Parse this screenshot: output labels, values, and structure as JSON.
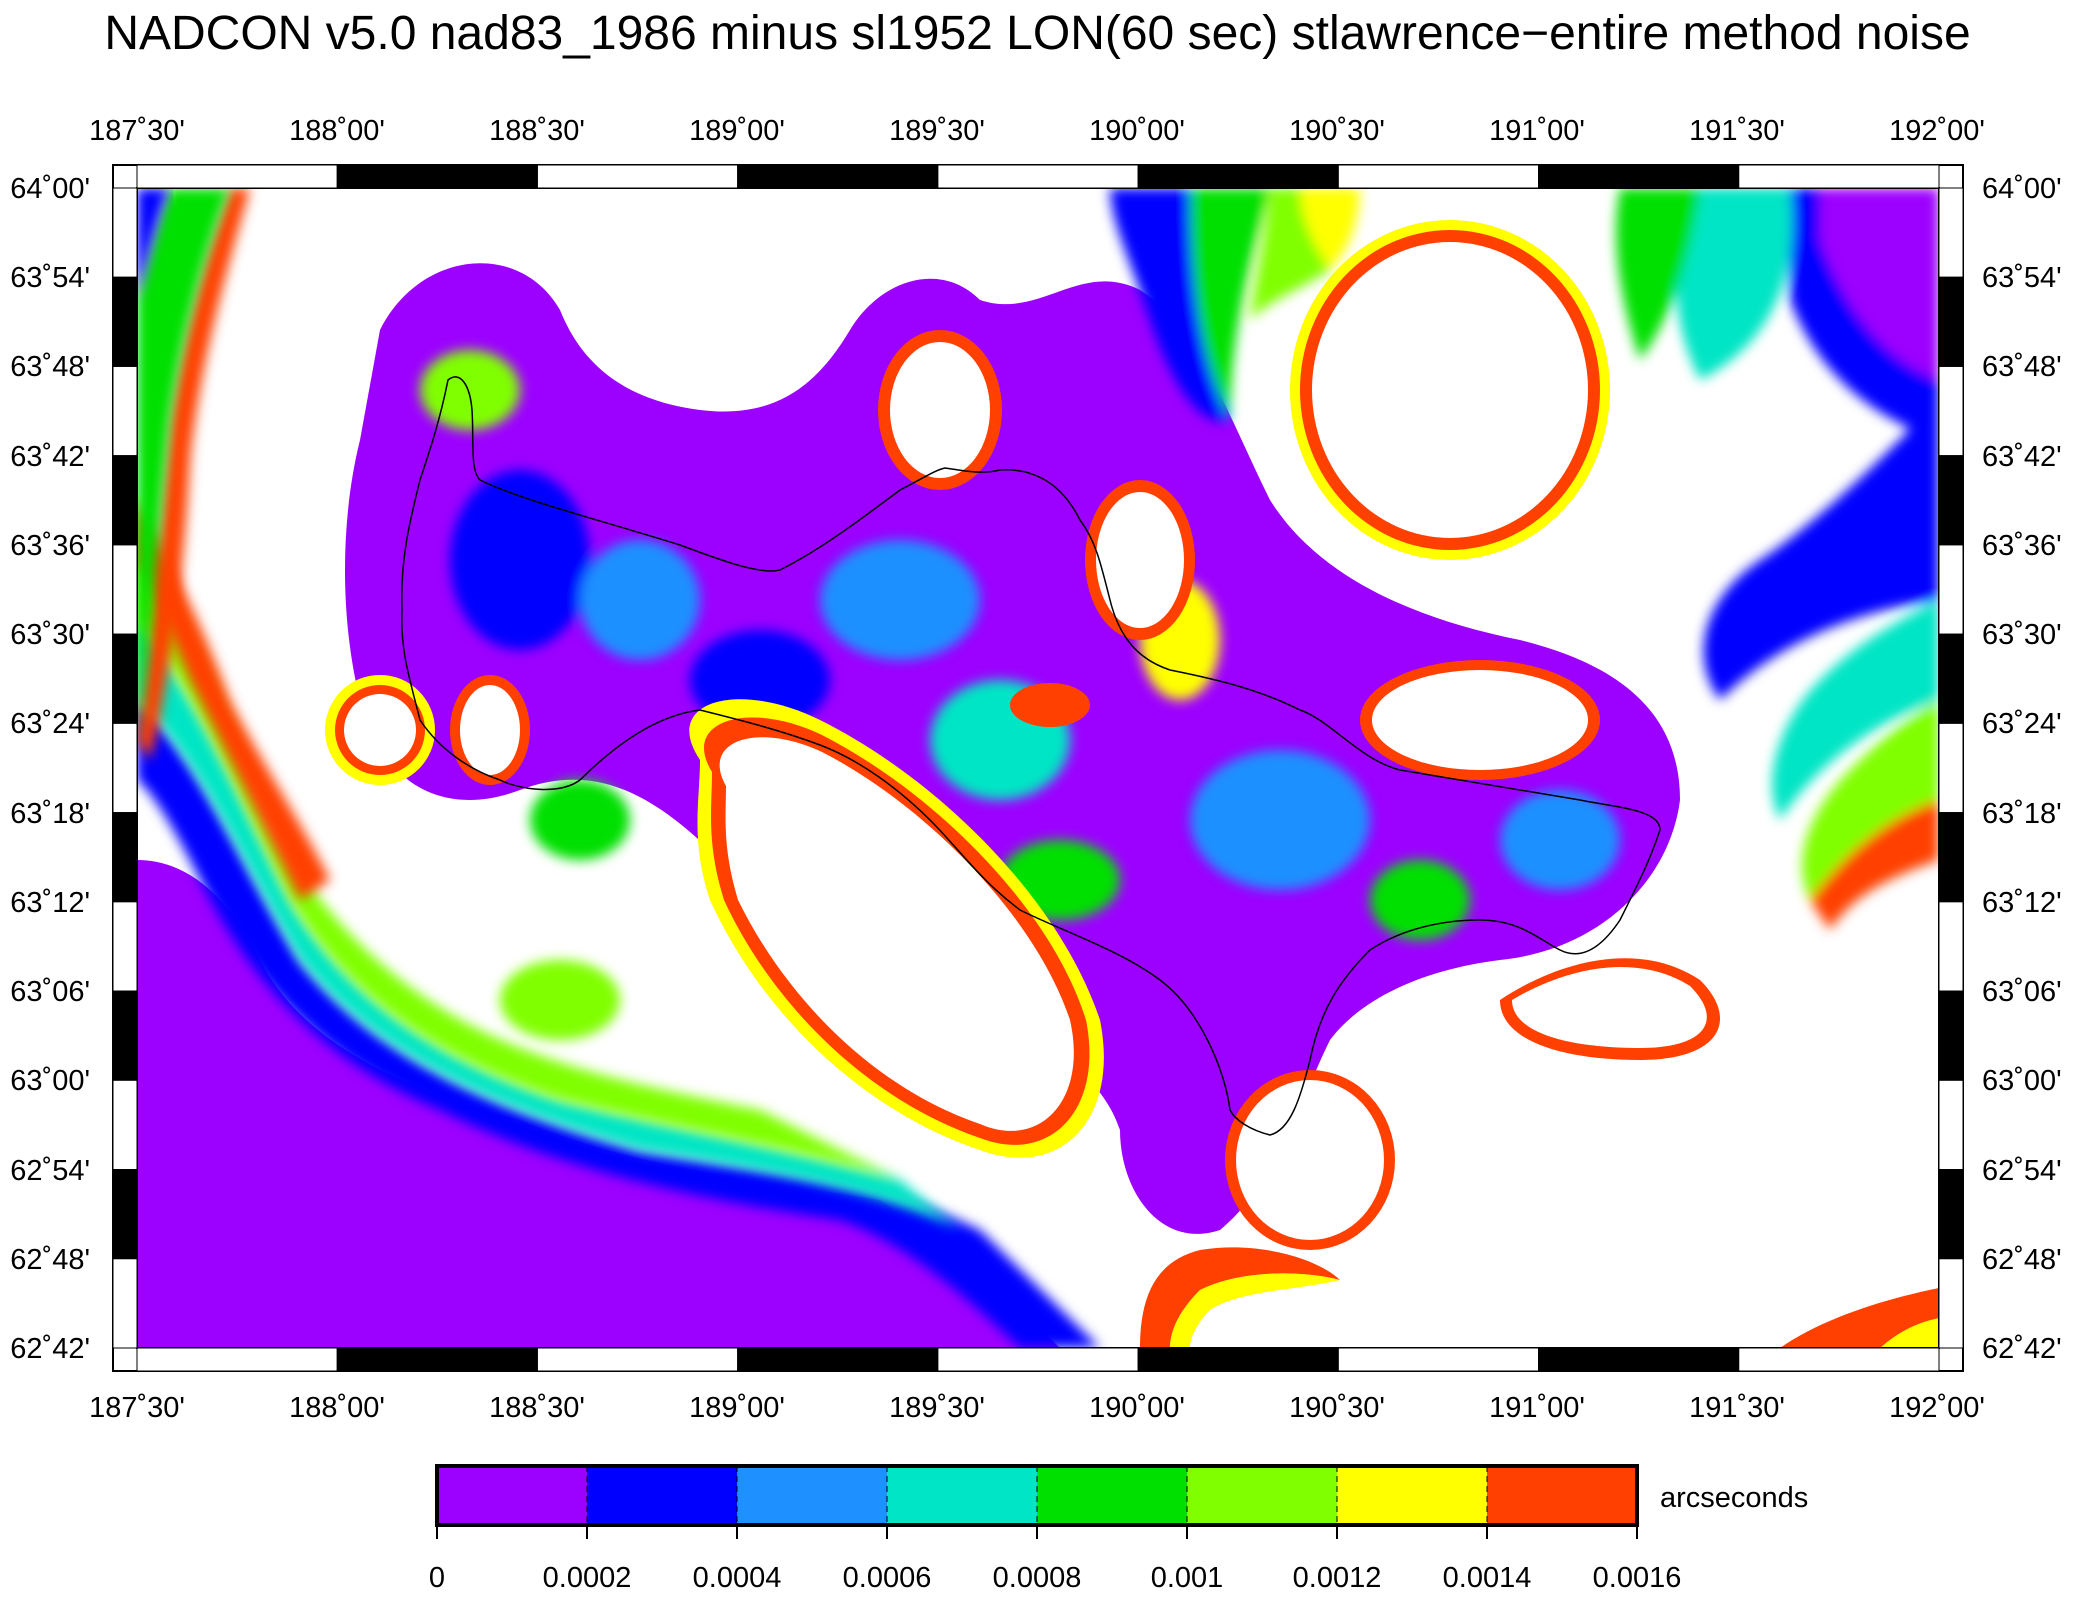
{
  "title": "NADCON v5.0 nad83_1986 minus sl1952 LON(60 sec) stlawrence−entire method noise",
  "map": {
    "lon_labels": [
      "187˚30'",
      "188˚00'",
      "188˚30'",
      "189˚00'",
      "189˚30'",
      "190˚00'",
      "190˚30'",
      "191˚00'",
      "191˚30'",
      "192˚00'"
    ],
    "lat_labels": [
      "64˚00'",
      "63˚54'",
      "63˚48'",
      "63˚42'",
      "63˚36'",
      "63˚30'",
      "63˚24'",
      "63˚18'",
      "63˚12'",
      "63˚06'",
      "63˚00'",
      "62˚54'",
      "62˚48'",
      "62˚42'"
    ],
    "lon_range": [
      "187˚30'",
      "192˚00'"
    ],
    "lat_range": [
      "62˚42'",
      "64˚00'"
    ]
  },
  "colorbar": {
    "unit": "arcseconds",
    "ticks": [
      "0",
      "0.0002",
      "0.0004",
      "0.0006",
      "0.0008",
      "0.001",
      "0.0012",
      "0.0014",
      "0.0016"
    ],
    "colors": [
      "#9c00ff",
      "#0000ff",
      "#1e90ff",
      "#00e5c5",
      "#00e000",
      "#80ff00",
      "#ffff00",
      "#ff4000"
    ],
    "above_max_color": "#ffffff"
  }
}
